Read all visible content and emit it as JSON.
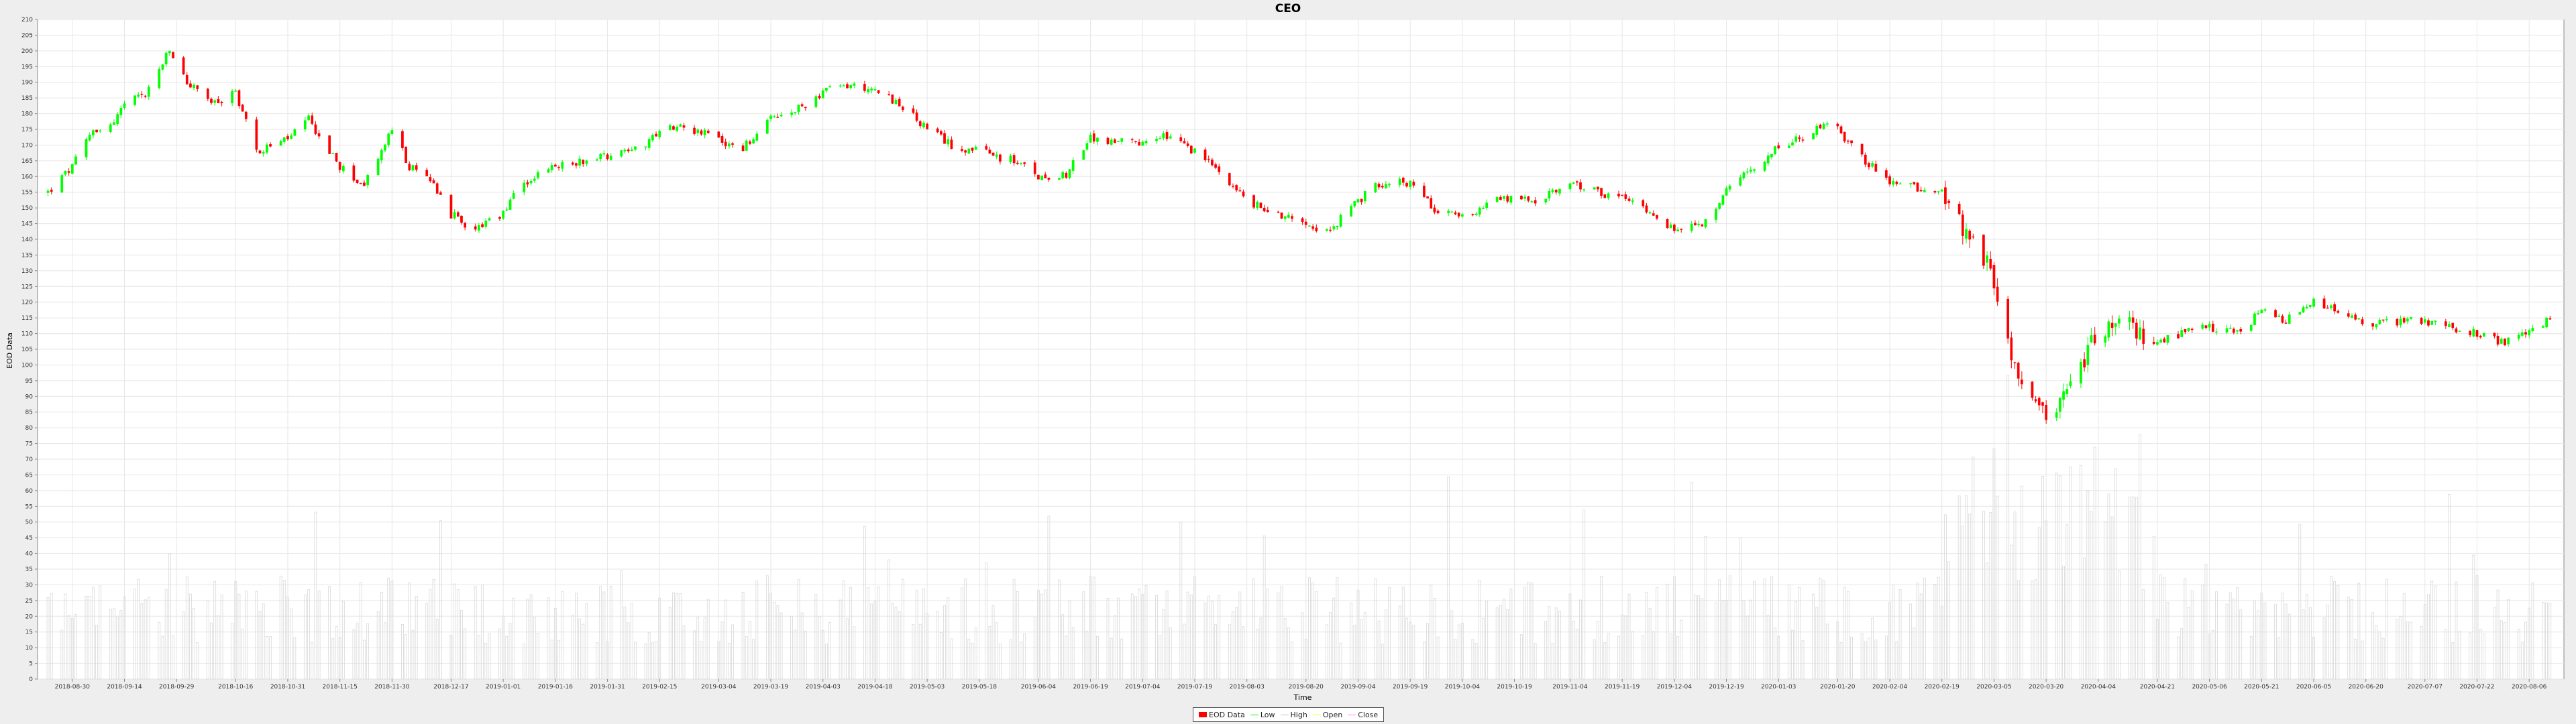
{
  "chart_data": {
    "type": "candlestick",
    "title": "CEO",
    "xlabel": "Time",
    "ylabel": "EOD Data",
    "ylim": [
      0,
      210
    ],
    "ytick_step": 5,
    "grid": true,
    "legend_position": "bottom-center",
    "x_tick_labels": [
      "2018-08-30",
      "2018-09-14",
      "2018-09-29",
      "2018-10-16",
      "2018-10-31",
      "2018-11-15",
      "2018-11-30",
      "2018-12-17",
      "2019-01-01",
      "2019-01-16",
      "2019-01-31",
      "2019-02-15",
      "2019-03-04",
      "2019-03-19",
      "2019-04-03",
      "2019-04-18",
      "2019-05-03",
      "2019-05-18",
      "2019-06-04",
      "2019-06-19",
      "2019-07-04",
      "2019-07-19",
      "2019-08-03",
      "2019-08-20",
      "2019-09-04",
      "2019-09-19",
      "2019-10-04",
      "2019-10-19",
      "2019-11-04",
      "2019-11-19",
      "2019-12-04",
      "2019-12-19",
      "2020-01-03",
      "2020-01-20",
      "2020-02-04",
      "2020-02-19",
      "2020-03-05",
      "2020-03-20",
      "2020-04-04",
      "2020-04-21",
      "2020-05-06",
      "2020-05-21",
      "2020-06-05",
      "2020-06-20",
      "2020-07-07",
      "2020-07-22",
      "2020-08-06"
    ],
    "close_anchors": [
      [
        "2018-08-23",
        155
      ],
      [
        "2018-08-30",
        163
      ],
      [
        "2018-09-05",
        175
      ],
      [
        "2018-09-10",
        176
      ],
      [
        "2018-09-14",
        183
      ],
      [
        "2018-09-20",
        186
      ],
      [
        "2018-09-27",
        200
      ],
      [
        "2018-10-02",
        190
      ],
      [
        "2018-10-10",
        183
      ],
      [
        "2018-10-16",
        187
      ],
      [
        "2018-10-22",
        168
      ],
      [
        "2018-10-31",
        172
      ],
      [
        "2018-11-06",
        178
      ],
      [
        "2018-11-15",
        163
      ],
      [
        "2018-11-22",
        157
      ],
      [
        "2018-11-30",
        175
      ],
      [
        "2018-12-05",
        163
      ],
      [
        "2018-12-12",
        158
      ],
      [
        "2018-12-17",
        148
      ],
      [
        "2018-12-24",
        143
      ],
      [
        "2018-12-31",
        147
      ],
      [
        "2019-01-07",
        158
      ],
      [
        "2019-01-16",
        163
      ],
      [
        "2019-01-31",
        167
      ],
      [
        "2019-02-10",
        170
      ],
      [
        "2019-02-20",
        177
      ],
      [
        "2019-03-04",
        172
      ],
      [
        "2019-03-10",
        168
      ],
      [
        "2019-03-19",
        178
      ],
      [
        "2019-03-25",
        180
      ],
      [
        "2019-04-03",
        187
      ],
      [
        "2019-04-10",
        189
      ],
      [
        "2019-04-18",
        188
      ],
      [
        "2019-04-25",
        183
      ],
      [
        "2019-05-03",
        175
      ],
      [
        "2019-05-10",
        170
      ],
      [
        "2019-05-18",
        168
      ],
      [
        "2019-05-28",
        165
      ],
      [
        "2019-06-04",
        160
      ],
      [
        "2019-06-12",
        161
      ],
      [
        "2019-06-19",
        172
      ],
      [
        "2019-06-26",
        171
      ],
      [
        "2019-07-04",
        170
      ],
      [
        "2019-07-10",
        173
      ],
      [
        "2019-07-19",
        168
      ],
      [
        "2019-07-28",
        160
      ],
      [
        "2019-08-03",
        152
      ],
      [
        "2019-08-12",
        148
      ],
      [
        "2019-08-20",
        146
      ],
      [
        "2019-08-26",
        142
      ],
      [
        "2019-09-04",
        152
      ],
      [
        "2019-09-10",
        158
      ],
      [
        "2019-09-19",
        158
      ],
      [
        "2019-09-26",
        150
      ],
      [
        "2019-10-04",
        147
      ],
      [
        "2019-10-12",
        152
      ],
      [
        "2019-10-19",
        153
      ],
      [
        "2019-10-26",
        152
      ],
      [
        "2019-11-04",
        158
      ],
      [
        "2019-11-12",
        155
      ],
      [
        "2019-11-19",
        153
      ],
      [
        "2019-11-26",
        150
      ],
      [
        "2019-12-04",
        143
      ],
      [
        "2019-12-12",
        144
      ],
      [
        "2019-12-19",
        155
      ],
      [
        "2019-12-26",
        162
      ],
      [
        "2020-01-03",
        170
      ],
      [
        "2020-01-10",
        172
      ],
      [
        "2020-01-17",
        177
      ],
      [
        "2020-01-20",
        175
      ],
      [
        "2020-01-28",
        165
      ],
      [
        "2020-02-04",
        158
      ],
      [
        "2020-02-10",
        157
      ],
      [
        "2020-02-19",
        155
      ],
      [
        "2020-02-27",
        140
      ],
      [
        "2020-03-04",
        130
      ],
      [
        "2020-03-07",
        113
      ],
      [
        "2020-03-12",
        95
      ],
      [
        "2020-03-20",
        83
      ],
      [
        "2020-03-27",
        95
      ],
      [
        "2020-04-04",
        110
      ],
      [
        "2020-04-10",
        115
      ],
      [
        "2020-04-21",
        107
      ],
      [
        "2020-04-28",
        110
      ],
      [
        "2020-05-06",
        112
      ],
      [
        "2020-05-14",
        110
      ],
      [
        "2020-05-21",
        117
      ],
      [
        "2020-05-28",
        114
      ],
      [
        "2020-06-05",
        120
      ],
      [
        "2020-06-12",
        117
      ],
      [
        "2020-06-20",
        113
      ],
      [
        "2020-06-28",
        114
      ],
      [
        "2020-07-07",
        114
      ],
      [
        "2020-07-15",
        112
      ],
      [
        "2020-07-22",
        110
      ],
      [
        "2020-07-29",
        107
      ],
      [
        "2020-08-06",
        110
      ],
      [
        "2020-08-12",
        115
      ]
    ],
    "volume_baseline": 22,
    "series": [
      {
        "name": "EOD Data",
        "color": "#ff0000"
      },
      {
        "name": "Low",
        "color": "#00ff00"
      },
      {
        "name": "High",
        "color": "#c0c0c0"
      },
      {
        "name": "Open",
        "color": "#ffff00"
      },
      {
        "name": "Close",
        "color": "#ff80ff"
      }
    ]
  }
}
